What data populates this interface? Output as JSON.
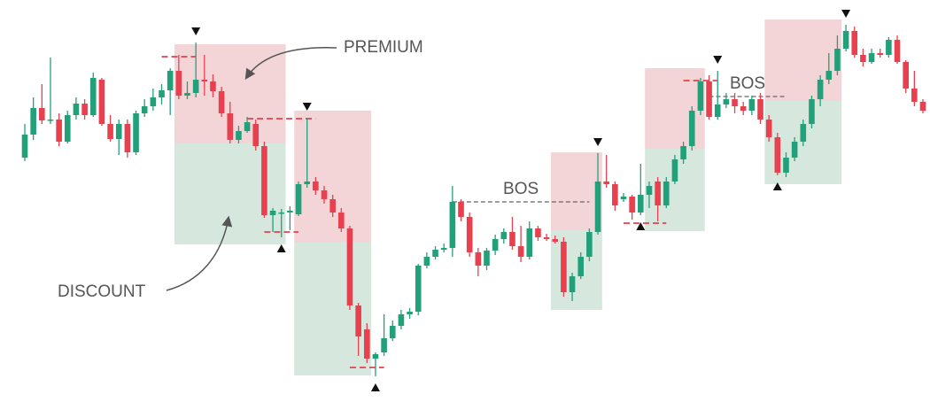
{
  "chart_data": {
    "type": "candlestick",
    "ylim": [
      0,
      454
    ],
    "up_color": "#22a07a",
    "down_color": "#e8404f",
    "premium_color": "#f4d5d7",
    "discount_color": "#d6e8dd",
    "open": [
      276,
      302,
      332,
      318,
      319,
      294,
      324,
      337,
      324,
      364,
      314,
      297,
      314,
      282,
      326,
      334,
      344,
      352,
      374,
      346,
      349,
      364,
      362,
      351,
      326,
      296,
      306,
      314,
      289,
      211,
      214,
      214,
      212,
      246,
      249,
      239,
      229,
      214,
      196,
      109,
      82,
      49,
      56,
      72,
      86,
      99,
      102,
      154,
      164,
      172,
      174,
      226,
      209,
      169,
      154,
      171,
      184,
      192,
      176,
      164,
      196,
      186,
      184,
      181,
      124,
      142,
      164,
      192,
      249,
      246,
      229,
      232,
      214,
      234,
      249,
      222,
      249,
      274,
      289,
      329,
      362,
      322,
      336,
      342,
      334,
      329,
      342,
      319,
      299,
      259,
      276,
      294,
      314,
      342,
      364,
      374,
      399,
      419,
      392,
      384,
      394,
      392,
      409,
      384,
      354,
      339
    ],
    "high": [
      314,
      344,
      359,
      389,
      326,
      329,
      344,
      342,
      372,
      366,
      324,
      319,
      319,
      329,
      342,
      354,
      359,
      377,
      392,
      362,
      406,
      392,
      370,
      356,
      339,
      312,
      322,
      319,
      294,
      219,
      218,
      221,
      249,
      321,
      254,
      244,
      234,
      219,
      199,
      112,
      89,
      56,
      99,
      92,
      104,
      106,
      156,
      169,
      176,
      179,
      244,
      229,
      214,
      174,
      174,
      189,
      196,
      209,
      199,
      204,
      199,
      190,
      188,
      186,
      146,
      169,
      196,
      281,
      279,
      249,
      236,
      234,
      269,
      249,
      254,
      254,
      279,
      294,
      334,
      366,
      369,
      374,
      349,
      349,
      339,
      346,
      349,
      324,
      304,
      282,
      299,
      319,
      346,
      369,
      394,
      414,
      426,
      424,
      399,
      399,
      399,
      412,
      414,
      386,
      374,
      342
    ],
    "low": [
      272,
      296,
      314,
      314,
      289,
      292,
      319,
      319,
      322,
      312,
      294,
      279,
      276,
      279,
      322,
      329,
      336,
      324,
      342,
      342,
      344,
      346,
      344,
      322,
      292,
      292,
      304,
      284,
      208,
      192,
      186,
      194,
      210,
      242,
      234,
      224,
      209,
      192,
      104,
      52,
      44,
      29,
      52,
      69,
      82,
      94,
      98,
      151,
      161,
      169,
      164,
      204,
      164,
      142,
      149,
      166,
      179,
      172,
      158,
      161,
      182,
      182,
      179,
      119,
      114,
      139,
      159,
      189,
      242,
      216,
      226,
      206,
      211,
      219,
      204,
      219,
      246,
      269,
      284,
      324,
      319,
      319,
      332,
      326,
      324,
      324,
      314,
      294,
      256,
      254,
      272,
      289,
      309,
      334,
      359,
      369,
      396,
      389,
      379,
      382,
      389,
      389,
      382,
      349,
      334,
      326
    ],
    "close": [
      302,
      332,
      318,
      319,
      294,
      324,
      337,
      324,
      366,
      314,
      297,
      314,
      282,
      326,
      334,
      344,
      352,
      374,
      346,
      349,
      364,
      362,
      351,
      326,
      296,
      306,
      316,
      289,
      211,
      216,
      214,
      216,
      246,
      249,
      239,
      229,
      214,
      196,
      109,
      74,
      49,
      54,
      72,
      86,
      99,
      102,
      154,
      164,
      172,
      174,
      226,
      209,
      169,
      154,
      171,
      184,
      192,
      176,
      164,
      196,
      186,
      184,
      181,
      124,
      142,
      164,
      192,
      249,
      246,
      222,
      232,
      214,
      234,
      244,
      222,
      249,
      274,
      289,
      329,
      362,
      322,
      336,
      342,
      334,
      329,
      342,
      319,
      299,
      259,
      276,
      294,
      314,
      342,
      364,
      374,
      399,
      419,
      392,
      384,
      394,
      392,
      409,
      384,
      354,
      339,
      329
    ],
    "zones": [
      {
        "from": 18,
        "to": 30,
        "top": 404,
        "mid": 292,
        "bottom": 178
      },
      {
        "from": 32,
        "to": 40,
        "top": 329,
        "mid": 180,
        "bottom": 30
      },
      {
        "from": 62,
        "to": 67,
        "top": 282,
        "mid": 194,
        "bottom": 104
      },
      {
        "from": 73,
        "to": 79,
        "top": 377,
        "mid": 286,
        "bottom": 193
      },
      {
        "from": 87,
        "to": 95,
        "top": 432,
        "mid": 340,
        "bottom": 246
      }
    ],
    "levels": [
      {
        "price": 390,
        "from": 16,
        "to": 20,
        "color": "#e8404f"
      },
      {
        "price": 320,
        "from": 26,
        "to": 34,
        "color": "#e8404f"
      },
      {
        "price": 192,
        "from": 28,
        "to": 32,
        "color": "#e8404f"
      },
      {
        "price": 39,
        "from": 38,
        "to": 42,
        "color": "#e8404f"
      },
      {
        "price": 202,
        "from": 70,
        "to": 75,
        "color": "#e8404f"
      },
      {
        "price": 363,
        "from": 77,
        "to": 81,
        "color": "#e8404f"
      },
      {
        "price": 226,
        "from": 50,
        "to": 66,
        "color": "#666666",
        "label": "BOS"
      },
      {
        "price": 345,
        "from": 80,
        "to": 89,
        "color": "#666666",
        "label": "BOS"
      }
    ],
    "markers": [
      {
        "index": 20,
        "side": "high"
      },
      {
        "index": 33,
        "side": "high"
      },
      {
        "index": 67,
        "side": "high"
      },
      {
        "index": 81,
        "side": "high"
      },
      {
        "index": 96,
        "side": "high"
      },
      {
        "index": 30,
        "side": "low"
      },
      {
        "index": 41,
        "side": "low"
      },
      {
        "index": 72,
        "side": "low"
      },
      {
        "index": 88,
        "side": "low"
      }
    ],
    "annotations": [
      "PREMIUM",
      "DISCOUNT"
    ]
  }
}
